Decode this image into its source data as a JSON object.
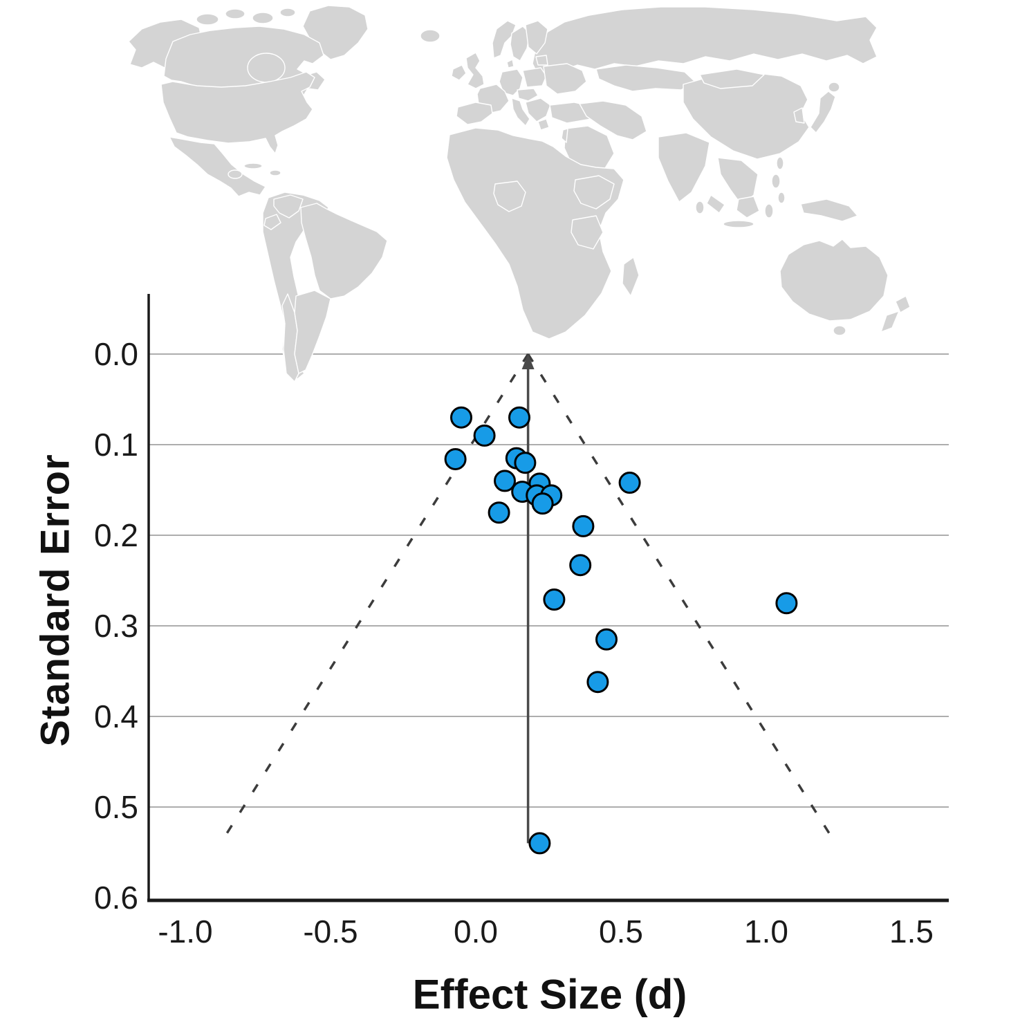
{
  "figure": {
    "background": "#ffffff",
    "description_elements": {
      "x_axis_title": "Effect Size (d)",
      "y_axis_title": "Standard Error"
    }
  },
  "map": {
    "kind": "world-choropleth-of-study-countries",
    "colors": {
      "highest": "#153A5B",
      "high": "#2F6385",
      "medium": "#4C7EA5",
      "medium-light": "#8AAFD0",
      "light-medium": "#A4C8E3",
      "light": "#BEDCF3",
      "none": "#D4D4D4",
      "water": "#FFFFFF",
      "border": "#FFFFFF"
    },
    "country_shades": {
      "alaska": "highest",
      "usa": "highest",
      "australia": "high",
      "tasmania": "high",
      "united-kingdom": "medium",
      "germany": "medium-light",
      "sweden": "light-medium",
      "turkey": "light-medium",
      "china": "light-medium",
      "canada": "light",
      "arctic-island-2": "light",
      "arctic-island-3": "light",
      "honduras": "light",
      "colombia": "light",
      "ecuador": "light",
      "brazil": "light",
      "argentina": "light",
      "norway": "light",
      "france": "light",
      "poland": "light",
      "czech-austria": "light",
      "israel": "light",
      "nigeria": "light",
      "ethiopia": "light",
      "tanzania": "light",
      "south-korea": "light",
      "japan": "light",
      "japan-hokkaido": "light",
      "taiwan": "light",
      "new-zealand-north": "light",
      "new-zealand-south": "light",
      "hudson-bay": "water"
    }
  },
  "chart_data": {
    "type": "scatter",
    "variant": "funnel-plot",
    "title": "",
    "xlabel": "Effect Size (d)",
    "ylabel": "Standard Error",
    "x_ticks": [
      "-1.0",
      "-0.5",
      "0.0",
      "0.5",
      "1.0",
      "1.5"
    ],
    "y_ticks": [
      "0.0",
      "0.1",
      "0.2",
      "0.3",
      "0.4",
      "0.5",
      "0.6"
    ],
    "x_range": [
      -1.13,
      1.63
    ],
    "y_range": [
      0.0,
      0.6
    ],
    "y_axis_direction": "inverted (SE grows downward)",
    "grid": true,
    "legend": false,
    "mean_effect": 0.18,
    "ci_z": 1.96,
    "funnel_max_se": 0.54,
    "point_style": {
      "fill": "#179BE7",
      "stroke": "#000000",
      "radius_px": 14.5
    },
    "line_colors": {
      "grid": "#ADADAD",
      "axis": "#1a1a1a",
      "mean_line": "#4a4a4a",
      "funnel_dashed": "#3c3c3c"
    },
    "points": [
      {
        "d": -0.05,
        "se": 0.07
      },
      {
        "d": 0.15,
        "se": 0.07
      },
      {
        "d": 0.03,
        "se": 0.09
      },
      {
        "d": -0.07,
        "se": 0.116
      },
      {
        "d": 0.14,
        "se": 0.115
      },
      {
        "d": 0.17,
        "se": 0.12
      },
      {
        "d": 0.1,
        "se": 0.14
      },
      {
        "d": 0.53,
        "se": 0.142
      },
      {
        "d": 0.22,
        "se": 0.143
      },
      {
        "d": 0.16,
        "se": 0.152
      },
      {
        "d": 0.21,
        "se": 0.156
      },
      {
        "d": 0.26,
        "se": 0.156
      },
      {
        "d": 0.23,
        "se": 0.165
      },
      {
        "d": 0.08,
        "se": 0.175
      },
      {
        "d": 0.37,
        "se": 0.19
      },
      {
        "d": 0.36,
        "se": 0.233
      },
      {
        "d": 0.27,
        "se": 0.271
      },
      {
        "d": 1.07,
        "se": 0.275
      },
      {
        "d": 0.45,
        "se": 0.315
      },
      {
        "d": 0.42,
        "se": 0.362
      },
      {
        "d": 0.22,
        "se": 0.54
      }
    ]
  }
}
